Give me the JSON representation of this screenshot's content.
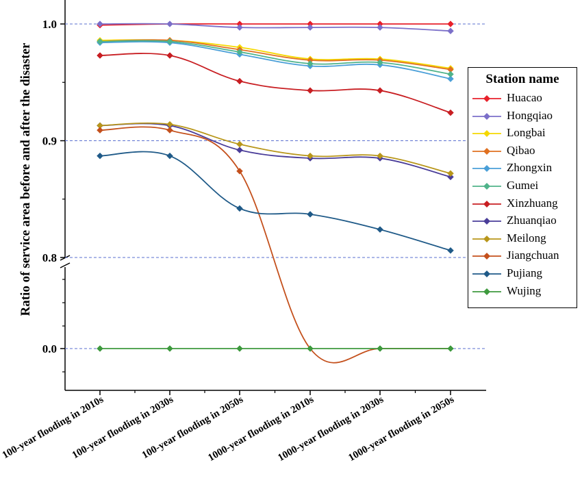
{
  "chart_data": {
    "type": "line",
    "ylabel": "Ratio of service area before and after the disaster",
    "xlabel": "",
    "categories": [
      "100-year flooding in 2010s",
      "100-year flooding in 2030s",
      "100-year flooding in 2050s",
      "1000-year flooding in 2010s",
      "1000-year flooding in 2030s",
      "1000-year flooding in 2050s"
    ],
    "y_axis": {
      "broken": true,
      "lower_segment": [
        0.0,
        0.0
      ],
      "upper_segment": [
        0.8,
        1.0
      ],
      "ticks": [
        "0.0",
        "0.8",
        "0.9",
        "1.0"
      ],
      "reference_lines": [
        0.0,
        0.8,
        0.9,
        1.0
      ]
    },
    "grid": false,
    "legend": {
      "title": "Station name",
      "placement": "right"
    },
    "series": [
      {
        "name": "Huacao",
        "color": "#e8212b",
        "values": [
          0.999,
          1.0,
          1.0,
          1.0,
          1.0,
          1.0
        ]
      },
      {
        "name": "Hongqiao",
        "color": "#7b6fc9",
        "values": [
          1.0,
          1.0,
          0.997,
          0.997,
          0.997,
          0.994
        ]
      },
      {
        "name": "Longbai",
        "color": "#f5d800",
        "values": [
          0.986,
          0.986,
          0.98,
          0.97,
          0.97,
          0.962
        ]
      },
      {
        "name": "Qibao",
        "color": "#e07020",
        "values": [
          0.985,
          0.986,
          0.978,
          0.969,
          0.969,
          0.961
        ]
      },
      {
        "name": "Zhongxin",
        "color": "#4a9fd8",
        "values": [
          0.984,
          0.984,
          0.974,
          0.964,
          0.965,
          0.953
        ]
      },
      {
        "name": "Gumei",
        "color": "#4fb38a",
        "values": [
          0.985,
          0.985,
          0.976,
          0.966,
          0.967,
          0.957
        ]
      },
      {
        "name": "Xinzhuang",
        "color": "#c81e22",
        "values": [
          0.973,
          0.973,
          0.951,
          0.943,
          0.943,
          0.924
        ]
      },
      {
        "name": "Zhuanqiao",
        "color": "#4a3d99",
        "values": [
          0.913,
          0.913,
          0.892,
          0.885,
          0.885,
          0.869
        ]
      },
      {
        "name": "Meilong",
        "color": "#b8961a",
        "values": [
          0.913,
          0.914,
          0.897,
          0.887,
          0.887,
          0.872
        ]
      },
      {
        "name": "Jiangchuan",
        "color": "#c4501c",
        "values": [
          0.909,
          0.909,
          0.874,
          0.0,
          0.0,
          0.0
        ]
      },
      {
        "name": "Pujiang",
        "color": "#1f5a88",
        "values": [
          0.887,
          0.887,
          0.842,
          0.837,
          0.824,
          0.806
        ]
      },
      {
        "name": "Wujing",
        "color": "#3e9a3e",
        "values": [
          0.0,
          0.0,
          0.0,
          0.0,
          0.0,
          0.0
        ]
      }
    ]
  }
}
